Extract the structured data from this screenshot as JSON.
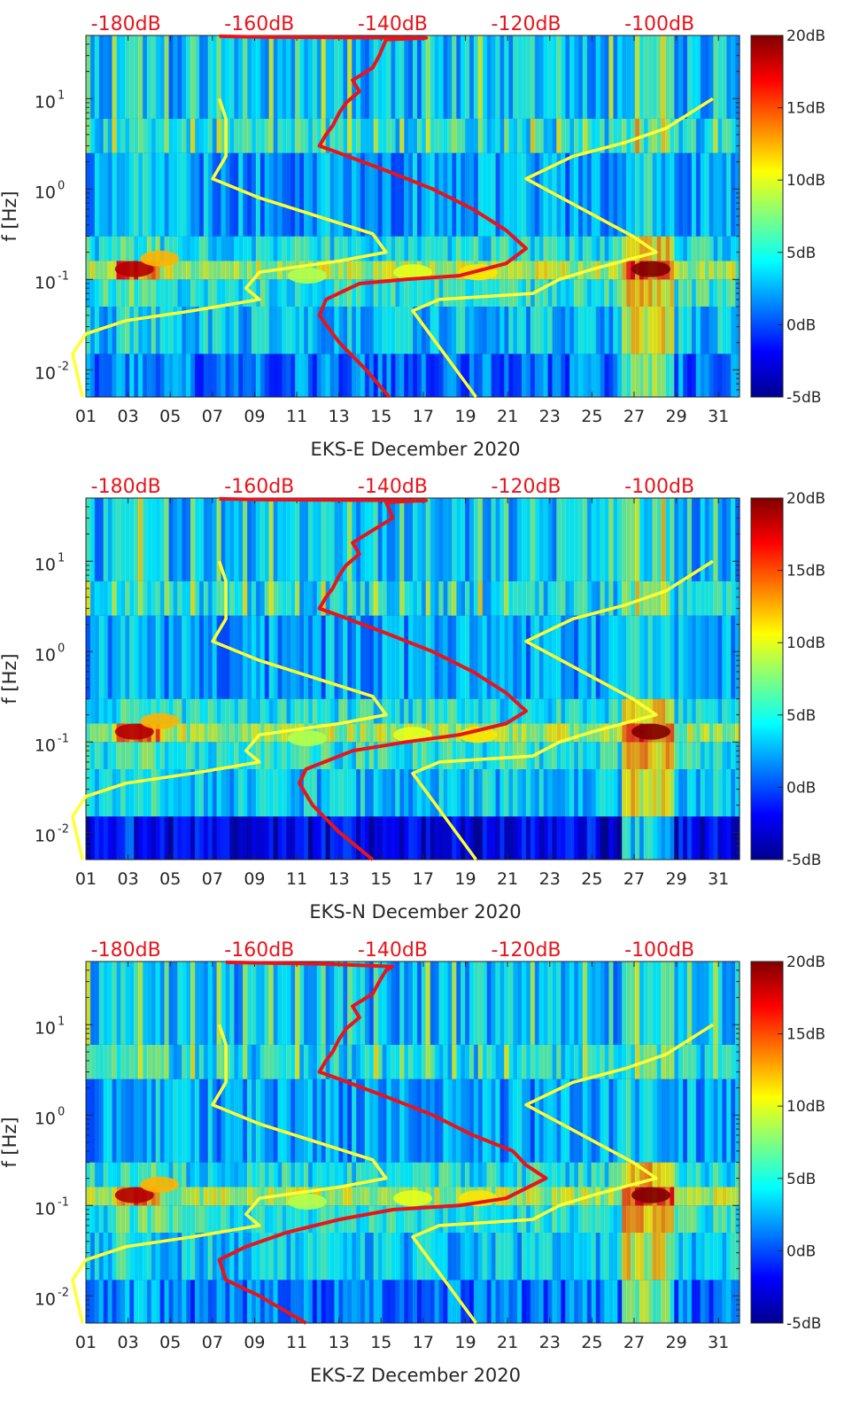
{
  "colors": {
    "background_colormap": "jet",
    "noise_model_lines": "#ffff33",
    "psd_line": "#e8141b",
    "top_axis_labels": "#e8141b"
  },
  "chart_data": [
    {
      "type": "heatmap",
      "title": "",
      "xlabel": "EKS-E December 2020",
      "ylabel": "f [Hz]",
      "x_tick_labels": [
        "01",
        "03",
        "05",
        "07",
        "09",
        "11",
        "13",
        "15",
        "17",
        "19",
        "21",
        "23",
        "25",
        "27",
        "29",
        "31"
      ],
      "xlim": [
        1,
        32
      ],
      "y_scale": "log",
      "ylim": [
        0.005,
        50
      ],
      "y_tick_labels": [
        "10-2",
        "10-1",
        "100",
        "101"
      ],
      "top_axis_labels": [
        "-180dB",
        "-160dB",
        "-140dB",
        "-120dB",
        "-100dB"
      ],
      "top_axis_values": [
        -180,
        -160,
        -140,
        -120,
        -100
      ],
      "top_axis_range": [
        -186,
        -88
      ],
      "colorbar": {
        "range": [
          -5,
          20
        ],
        "tick_labels": [
          "20dB",
          "15dB",
          "10dB",
          "5dB",
          "0dB",
          "-5dB"
        ],
        "tick_values": [
          20,
          15,
          10,
          5,
          0,
          -5
        ]
      },
      "series": [
        {
          "color": "#ffff33",
          "axis": "top_dB",
          "points": [
            [
              -186.5,
              0.005
            ],
            [
              -188,
              0.015
            ],
            [
              -186,
              0.025
            ],
            [
              -180,
              0.035
            ],
            [
              -170,
              0.045
            ],
            [
              -160,
              0.06
            ],
            [
              -162,
              0.08
            ],
            [
              -160,
              0.12
            ],
            [
              -148,
              0.16
            ],
            [
              -141,
              0.2
            ],
            [
              -143,
              0.32
            ],
            [
              -160,
              0.8
            ],
            [
              -167,
              1.3
            ],
            [
              -165,
              2.3
            ],
            [
              -165,
              6
            ],
            [
              -166,
              10
            ]
          ]
        },
        {
          "color": "#ffff33",
          "axis": "top_dB",
          "points": [
            [
              -127.5,
              0.005
            ],
            [
              -137,
              0.045
            ],
            [
              -133,
              0.06
            ],
            [
              -119,
              0.07
            ],
            [
              -115,
              0.1
            ],
            [
              -110,
              0.13
            ],
            [
              -100.5,
              0.2
            ],
            [
              -104,
              0.3
            ],
            [
              -120,
              1.3
            ],
            [
              -113,
              2.3
            ],
            [
              -105,
              3.3
            ],
            [
              -99,
              4.7
            ],
            [
              -92,
              10
            ]
          ]
        },
        {
          "color": "#e8141b",
          "axis": "top_dB",
          "points": [
            [
              -140.5,
              0.005
            ],
            [
              -144,
              0.01
            ],
            [
              -148,
              0.02
            ],
            [
              -151,
              0.04
            ],
            [
              -150,
              0.06
            ],
            [
              -145,
              0.09
            ],
            [
              -138,
              0.1
            ],
            [
              -130,
              0.11
            ],
            [
              -123,
              0.15
            ],
            [
              -120,
              0.22
            ],
            [
              -123,
              0.35
            ],
            [
              -128,
              0.6
            ],
            [
              -134,
              1.0
            ],
            [
              -141,
              1.6
            ],
            [
              -148,
              2.5
            ],
            [
              -151,
              3
            ],
            [
              -150,
              4
            ],
            [
              -149,
              5
            ],
            [
              -148,
              7
            ],
            [
              -147,
              9
            ],
            [
              -145,
              12
            ],
            [
              -146,
              16
            ],
            [
              -143,
              22
            ],
            [
              -142,
              30
            ],
            [
              -141,
              45
            ],
            [
              -135,
              47
            ],
            [
              -160,
              48
            ],
            [
              -166,
              49
            ]
          ]
        }
      ]
    },
    {
      "type": "heatmap",
      "title": "",
      "xlabel": "EKS-N December 2020",
      "ylabel": "f [Hz]",
      "x_tick_labels": [
        "01",
        "03",
        "05",
        "07",
        "09",
        "11",
        "13",
        "15",
        "17",
        "19",
        "21",
        "23",
        "25",
        "27",
        "29",
        "31"
      ],
      "xlim": [
        1,
        32
      ],
      "y_scale": "log",
      "ylim": [
        0.005,
        50
      ],
      "y_tick_labels": [
        "10-2",
        "10-1",
        "100",
        "101"
      ],
      "top_axis_labels": [
        "-180dB",
        "-160dB",
        "-140dB",
        "-120dB",
        "-100dB"
      ],
      "top_axis_values": [
        -180,
        -160,
        -140,
        -120,
        -100
      ],
      "top_axis_range": [
        -186,
        -88
      ],
      "colorbar": {
        "range": [
          -5,
          20
        ],
        "tick_labels": [
          "20dB",
          "15dB",
          "10dB",
          "5dB",
          "0dB",
          "-5dB"
        ],
        "tick_values": [
          20,
          15,
          10,
          5,
          0,
          -5
        ]
      },
      "series": [
        {
          "color": "#ffff33",
          "axis": "top_dB",
          "points": [
            [
              -186.5,
              0.005
            ],
            [
              -188,
              0.015
            ],
            [
              -186,
              0.025
            ],
            [
              -180,
              0.035
            ],
            [
              -170,
              0.045
            ],
            [
              -160,
              0.06
            ],
            [
              -162,
              0.08
            ],
            [
              -160,
              0.12
            ],
            [
              -148,
              0.16
            ],
            [
              -141,
              0.2
            ],
            [
              -143,
              0.32
            ],
            [
              -160,
              0.8
            ],
            [
              -167,
              1.3
            ],
            [
              -165,
              2.3
            ],
            [
              -165,
              6
            ],
            [
              -166,
              10
            ]
          ]
        },
        {
          "color": "#ffff33",
          "axis": "top_dB",
          "points": [
            [
              -127.5,
              0.005
            ],
            [
              -137,
              0.045
            ],
            [
              -133,
              0.06
            ],
            [
              -119,
              0.07
            ],
            [
              -115,
              0.1
            ],
            [
              -110,
              0.13
            ],
            [
              -100.5,
              0.2
            ],
            [
              -104,
              0.3
            ],
            [
              -120,
              1.3
            ],
            [
              -113,
              2.3
            ],
            [
              -105,
              3.3
            ],
            [
              -99,
              4.7
            ],
            [
              -92,
              10
            ]
          ]
        },
        {
          "color": "#e8141b",
          "axis": "top_dB",
          "points": [
            [
              -143,
              0.005
            ],
            [
              -148,
              0.01
            ],
            [
              -152,
              0.02
            ],
            [
              -154,
              0.035
            ],
            [
              -153,
              0.05
            ],
            [
              -146,
              0.08
            ],
            [
              -138,
              0.1
            ],
            [
              -130,
              0.12
            ],
            [
              -123,
              0.16
            ],
            [
              -120,
              0.22
            ],
            [
              -123,
              0.35
            ],
            [
              -128,
              0.6
            ],
            [
              -134,
              1.0
            ],
            [
              -141,
              1.6
            ],
            [
              -148,
              2.5
            ],
            [
              -151,
              3
            ],
            [
              -150,
              4
            ],
            [
              -149,
              5
            ],
            [
              -148,
              7
            ],
            [
              -147,
              9
            ],
            [
              -145,
              12
            ],
            [
              -146,
              16
            ],
            [
              -143,
              22
            ],
            [
              -140,
              30
            ],
            [
              -141,
              45
            ],
            [
              -135,
              47
            ],
            [
              -160,
              48
            ],
            [
              -166,
              49
            ]
          ]
        }
      ]
    },
    {
      "type": "heatmap",
      "title": "",
      "xlabel": "EKS-Z December 2020",
      "ylabel": "f [Hz]",
      "x_tick_labels": [
        "01",
        "03",
        "05",
        "07",
        "09",
        "11",
        "13",
        "15",
        "17",
        "19",
        "21",
        "23",
        "25",
        "27",
        "29",
        "31"
      ],
      "xlim": [
        1,
        32
      ],
      "y_scale": "log",
      "ylim": [
        0.005,
        50
      ],
      "y_tick_labels": [
        "10-2",
        "10-1",
        "100",
        "101"
      ],
      "top_axis_labels": [
        "-180dB",
        "-160dB",
        "-140dB",
        "-120dB",
        "-100dB"
      ],
      "top_axis_values": [
        -180,
        -160,
        -140,
        -120,
        -100
      ],
      "top_axis_range": [
        -186,
        -88
      ],
      "colorbar": {
        "range": [
          -5,
          20
        ],
        "tick_labels": [
          "20dB",
          "15dB",
          "10dB",
          "5dB",
          "0dB",
          "-5dB"
        ],
        "tick_values": [
          20,
          15,
          10,
          5,
          0,
          -5
        ]
      },
      "series": [
        {
          "color": "#ffff33",
          "axis": "top_dB",
          "points": [
            [
              -186.5,
              0.005
            ],
            [
              -188,
              0.015
            ],
            [
              -186,
              0.025
            ],
            [
              -180,
              0.035
            ],
            [
              -170,
              0.045
            ],
            [
              -160,
              0.06
            ],
            [
              -162,
              0.08
            ],
            [
              -160,
              0.12
            ],
            [
              -148,
              0.16
            ],
            [
              -141,
              0.2
            ],
            [
              -143,
              0.32
            ],
            [
              -160,
              0.8
            ],
            [
              -167,
              1.3
            ],
            [
              -165,
              2.3
            ],
            [
              -165,
              6
            ],
            [
              -166,
              10
            ]
          ]
        },
        {
          "color": "#ffff33",
          "axis": "top_dB",
          "points": [
            [
              -127.5,
              0.005
            ],
            [
              -137,
              0.045
            ],
            [
              -133,
              0.06
            ],
            [
              -119,
              0.07
            ],
            [
              -115,
              0.1
            ],
            [
              -110,
              0.13
            ],
            [
              -100.5,
              0.2
            ],
            [
              -104,
              0.3
            ],
            [
              -120,
              1.3
            ],
            [
              -113,
              2.3
            ],
            [
              -105,
              3.3
            ],
            [
              -99,
              4.7
            ],
            [
              -92,
              10
            ]
          ]
        },
        {
          "color": "#e8141b",
          "axis": "top_dB",
          "points": [
            [
              -153,
              0.005
            ],
            [
              -160,
              0.01
            ],
            [
              -165,
              0.015
            ],
            [
              -166,
              0.025
            ],
            [
              -162,
              0.035
            ],
            [
              -156,
              0.05
            ],
            [
              -148,
              0.07
            ],
            [
              -140,
              0.09
            ],
            [
              -130,
              0.1
            ],
            [
              -123,
              0.12
            ],
            [
              -117,
              0.2
            ],
            [
              -120,
              0.28
            ],
            [
              -122,
              0.4
            ],
            [
              -128,
              0.6
            ],
            [
              -134,
              1.0
            ],
            [
              -141,
              1.6
            ],
            [
              -148,
              2.5
            ],
            [
              -151,
              3
            ],
            [
              -150,
              4
            ],
            [
              -149,
              5
            ],
            [
              -148,
              7
            ],
            [
              -147,
              9
            ],
            [
              -145,
              12
            ],
            [
              -146,
              16
            ],
            [
              -143,
              22
            ],
            [
              -142,
              30
            ],
            [
              -141,
              40
            ],
            [
              -140,
              44
            ],
            [
              -150,
              47
            ],
            [
              -165,
              49
            ]
          ]
        }
      ]
    }
  ]
}
